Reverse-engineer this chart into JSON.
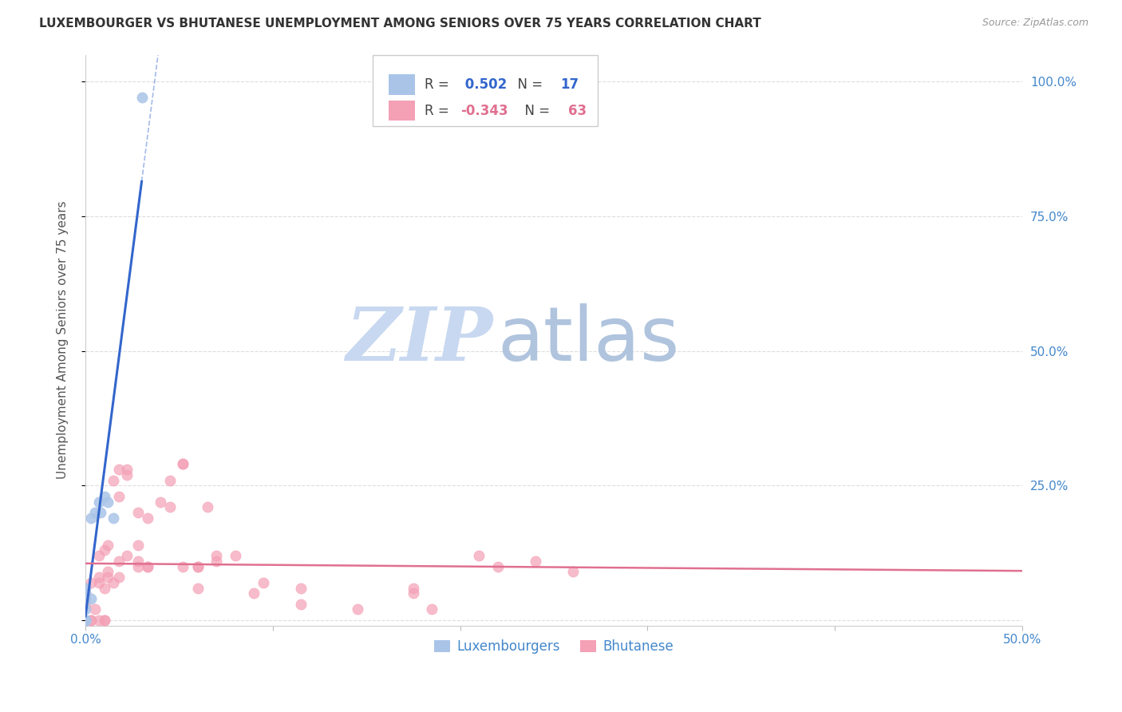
{
  "title": "LUXEMBOURGER VS BHUTANESE UNEMPLOYMENT AMONG SENIORS OVER 75 YEARS CORRELATION CHART",
  "source": "Source: ZipAtlas.com",
  "ylabel": "Unemployment Among Seniors over 75 years",
  "xlim": [
    0.0,
    0.5
  ],
  "ylim": [
    -0.01,
    1.05
  ],
  "background_color": "#ffffff",
  "grid_color": "#dddddd",
  "lux_color": "#aac4e8",
  "bhut_color": "#f4a0b5",
  "lux_trend_color": "#3366cc",
  "bhut_trend_color": "#e07090",
  "lux_R": 0.502,
  "lux_N": 17,
  "bhut_R": -0.343,
  "bhut_N": 63,
  "watermark_zip": "ZIP",
  "watermark_atlas": "atlas",
  "watermark_color_zip": "#c8d8ee",
  "watermark_color_atlas": "#b8c8e0",
  "lux_x": [
    0.0,
    0.0,
    0.0,
    0.0,
    0.0,
    0.0,
    0.0,
    0.0,
    0.003,
    0.003,
    0.005,
    0.007,
    0.008,
    0.01,
    0.012,
    0.015,
    0.03
  ],
  "lux_y": [
    0.0,
    0.0,
    0.0,
    0.0,
    0.02,
    0.04,
    0.05,
    0.06,
    0.04,
    0.19,
    0.2,
    0.22,
    0.2,
    0.23,
    0.22,
    0.19,
    0.97
  ],
  "bhut_x": [
    0.0,
    0.0,
    0.0,
    0.0,
    0.0,
    0.0,
    0.0,
    0.003,
    0.003,
    0.003,
    0.005,
    0.007,
    0.007,
    0.007,
    0.007,
    0.01,
    0.01,
    0.01,
    0.01,
    0.012,
    0.012,
    0.012,
    0.015,
    0.015,
    0.018,
    0.018,
    0.018,
    0.018,
    0.022,
    0.022,
    0.022,
    0.028,
    0.028,
    0.028,
    0.028,
    0.033,
    0.033,
    0.033,
    0.04,
    0.045,
    0.045,
    0.052,
    0.052,
    0.052,
    0.06,
    0.06,
    0.06,
    0.065,
    0.07,
    0.07,
    0.08,
    0.09,
    0.095,
    0.115,
    0.115,
    0.145,
    0.175,
    0.175,
    0.185,
    0.21,
    0.22,
    0.24,
    0.26
  ],
  "bhut_y": [
    0.0,
    0.0,
    0.0,
    0.0,
    0.0,
    0.03,
    0.05,
    0.0,
    0.0,
    0.07,
    0.02,
    0.0,
    0.07,
    0.08,
    0.12,
    0.0,
    0.0,
    0.06,
    0.13,
    0.08,
    0.09,
    0.14,
    0.07,
    0.26,
    0.08,
    0.11,
    0.23,
    0.28,
    0.12,
    0.27,
    0.28,
    0.1,
    0.11,
    0.14,
    0.2,
    0.1,
    0.1,
    0.19,
    0.22,
    0.21,
    0.26,
    0.29,
    0.29,
    0.1,
    0.06,
    0.1,
    0.1,
    0.21,
    0.11,
    0.12,
    0.12,
    0.05,
    0.07,
    0.03,
    0.06,
    0.02,
    0.05,
    0.06,
    0.02,
    0.12,
    0.1,
    0.11,
    0.09
  ]
}
